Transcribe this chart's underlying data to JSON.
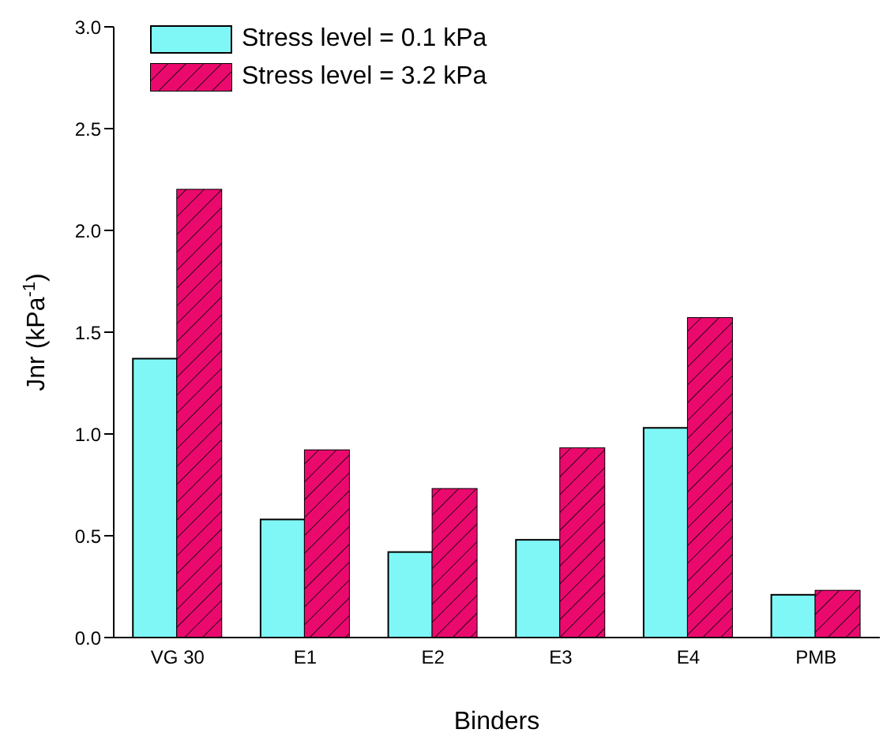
{
  "chart_data": {
    "type": "bar",
    "xlabel": "Binders",
    "ylabel": "Jnr (kPa$^{-1}$)",
    "categories": [
      "VG 30",
      "E1",
      "E2",
      "E3",
      "E4",
      "PMB"
    ],
    "series": [
      {
        "name": "Stress level = 0.1 kPa",
        "color": "#80f7f7",
        "values": [
          1.37,
          0.58,
          0.42,
          0.48,
          1.03,
          0.21
        ]
      },
      {
        "name": "Stress level = 3.2 kPa",
        "color": "#ea0a6e",
        "values": [
          2.2,
          0.92,
          0.73,
          0.93,
          1.57,
          0.23
        ]
      }
    ],
    "ylim": [
      0,
      3
    ],
    "yticks": [
      {
        "value": 0,
        "label": "0.0"
      },
      {
        "value": 0.5,
        "label": "0.5"
      },
      {
        "value": 1,
        "label": "1.0"
      },
      {
        "value": 1.5,
        "label": "1.5"
      },
      {
        "value": 2,
        "label": "2.0"
      },
      {
        "value": 2.5,
        "label": "2.5"
      },
      {
        "value": 3,
        "label": "3.0"
      }
    ],
    "grid": false,
    "legend": "top left"
  }
}
